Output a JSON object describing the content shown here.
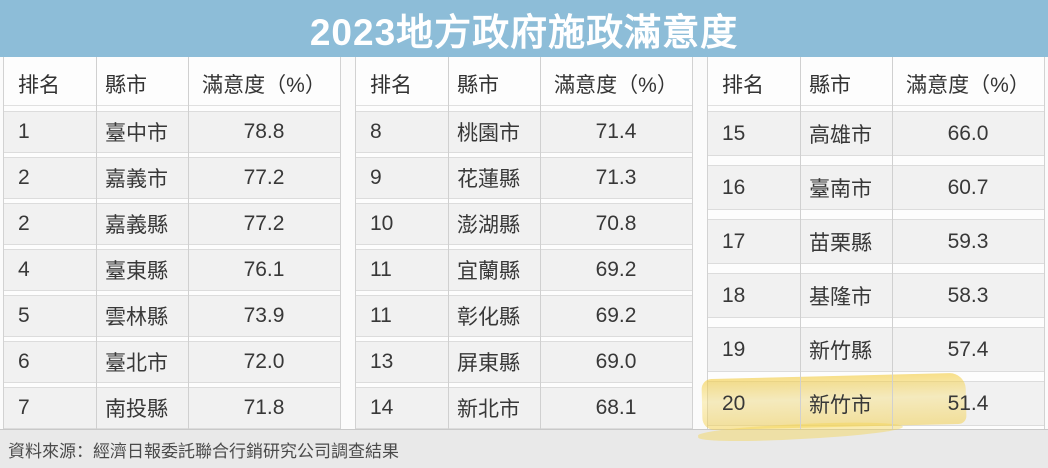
{
  "title": "2023地方政府施政滿意度",
  "source_note": "資料來源：經濟日報委託聯合行銷研究公司調查結果",
  "columns": {
    "rank": "排名",
    "city": "縣市",
    "satisfaction": "滿意度（%）"
  },
  "tables": [
    {
      "rows": [
        {
          "rank": "1",
          "city": "臺中市",
          "value": "78.8"
        },
        {
          "rank": "2",
          "city": "嘉義市",
          "value": "77.2"
        },
        {
          "rank": "2",
          "city": "嘉義縣",
          "value": "77.2"
        },
        {
          "rank": "4",
          "city": "臺東縣",
          "value": "76.1"
        },
        {
          "rank": "5",
          "city": "雲林縣",
          "value": "73.9"
        },
        {
          "rank": "6",
          "city": "臺北市",
          "value": "72.0"
        },
        {
          "rank": "7",
          "city": "南投縣",
          "value": "71.8"
        }
      ]
    },
    {
      "rows": [
        {
          "rank": "8",
          "city": "桃園市",
          "value": "71.4"
        },
        {
          "rank": "9",
          "city": "花蓮縣",
          "value": "71.3"
        },
        {
          "rank": "10",
          "city": "澎湖縣",
          "value": "70.8"
        },
        {
          "rank": "11",
          "city": "宜蘭縣",
          "value": "69.2"
        },
        {
          "rank": "11",
          "city": "彰化縣",
          "value": "69.2"
        },
        {
          "rank": "13",
          "city": "屏東縣",
          "value": "69.0"
        },
        {
          "rank": "14",
          "city": "新北市",
          "value": "68.1"
        }
      ]
    },
    {
      "rows": [
        {
          "rank": "15",
          "city": "高雄市",
          "value": "66.0"
        },
        {
          "rank": "16",
          "city": "臺南市",
          "value": "60.7"
        },
        {
          "rank": "17",
          "city": "苗栗縣",
          "value": "59.3"
        },
        {
          "rank": "18",
          "city": "基隆市",
          "value": "58.3"
        },
        {
          "rank": "19",
          "city": "新竹縣",
          "value": "57.4"
        },
        {
          "rank": "20",
          "city": "新竹市",
          "value": "51.4",
          "highlighted": true
        }
      ]
    }
  ],
  "colors": {
    "title_band": "#8dbdd8",
    "title_text": "#ffffff",
    "row_bg": "#f1f1f1",
    "footer_bg": "#e9e9e9",
    "highlight_yellow": "#f3cb3e"
  },
  "chart_data": {
    "type": "table",
    "title": "2023地方政府施政滿意度",
    "columns": [
      "排名",
      "縣市",
      "滿意度（%）"
    ],
    "rows": [
      [
        1,
        "臺中市",
        78.8
      ],
      [
        2,
        "嘉義市",
        77.2
      ],
      [
        2,
        "嘉義縣",
        77.2
      ],
      [
        4,
        "臺東縣",
        76.1
      ],
      [
        5,
        "雲林縣",
        73.9
      ],
      [
        6,
        "臺北市",
        72.0
      ],
      [
        7,
        "南投縣",
        71.8
      ],
      [
        8,
        "桃園市",
        71.4
      ],
      [
        9,
        "花蓮縣",
        71.3
      ],
      [
        10,
        "澎湖縣",
        70.8
      ],
      [
        11,
        "宜蘭縣",
        69.2
      ],
      [
        11,
        "彰化縣",
        69.2
      ],
      [
        13,
        "屏東縣",
        69.0
      ],
      [
        14,
        "新北市",
        68.1
      ],
      [
        15,
        "高雄市",
        66.0
      ],
      [
        16,
        "臺南市",
        60.7
      ],
      [
        17,
        "苗栗縣",
        59.3
      ],
      [
        18,
        "基隆市",
        58.3
      ],
      [
        19,
        "新竹縣",
        57.4
      ],
      [
        20,
        "新竹市",
        51.4
      ]
    ],
    "highlighted_row": [
      20,
      "新竹市",
      51.4
    ],
    "layout": "three tables side by side, 7 + 7 + 6 rows",
    "source": "資料來源：經濟日報委託聯合行銷研究公司調查結果"
  }
}
